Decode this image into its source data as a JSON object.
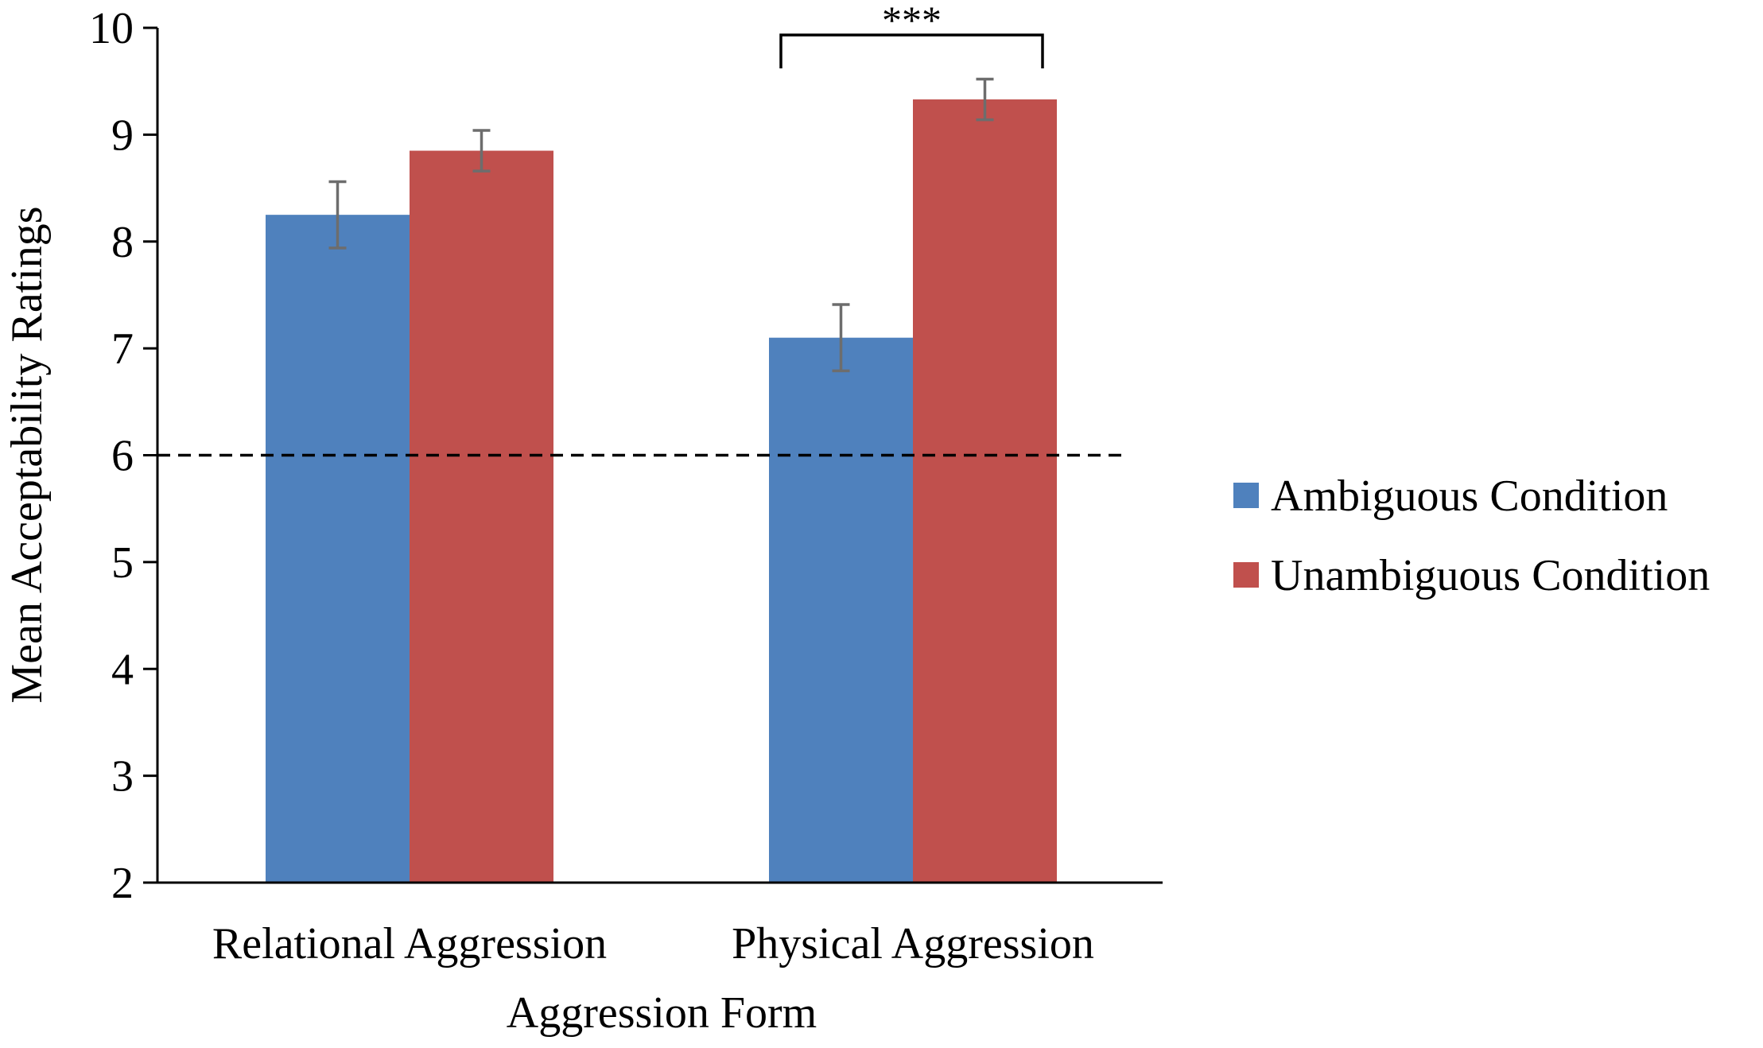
{
  "chart_data": {
    "type": "bar",
    "title": "",
    "xlabel": "Aggression Form",
    "ylabel": "Mean Acceptability Ratings",
    "ylim": [
      2,
      10
    ],
    "yticks": [
      "2",
      "3",
      "4",
      "5",
      "6",
      "7",
      "8",
      "9",
      "10"
    ],
    "categories": [
      "Relational Aggression",
      "Physical Aggression"
    ],
    "series": [
      {
        "name": "Ambiguous Condition",
        "color": "#4F81BD",
        "values": [
          8.25,
          7.1
        ],
        "error": [
          0.31,
          0.31
        ]
      },
      {
        "name": "Unambiguous Condition",
        "color": "#C0504D",
        "values": [
          8.85,
          9.33
        ],
        "error": [
          0.19,
          0.19
        ]
      }
    ],
    "reference_line": {
      "value": 6,
      "style": "dashed"
    },
    "significance": {
      "category_index": 1,
      "label": "***"
    },
    "legend_position": "right"
  }
}
